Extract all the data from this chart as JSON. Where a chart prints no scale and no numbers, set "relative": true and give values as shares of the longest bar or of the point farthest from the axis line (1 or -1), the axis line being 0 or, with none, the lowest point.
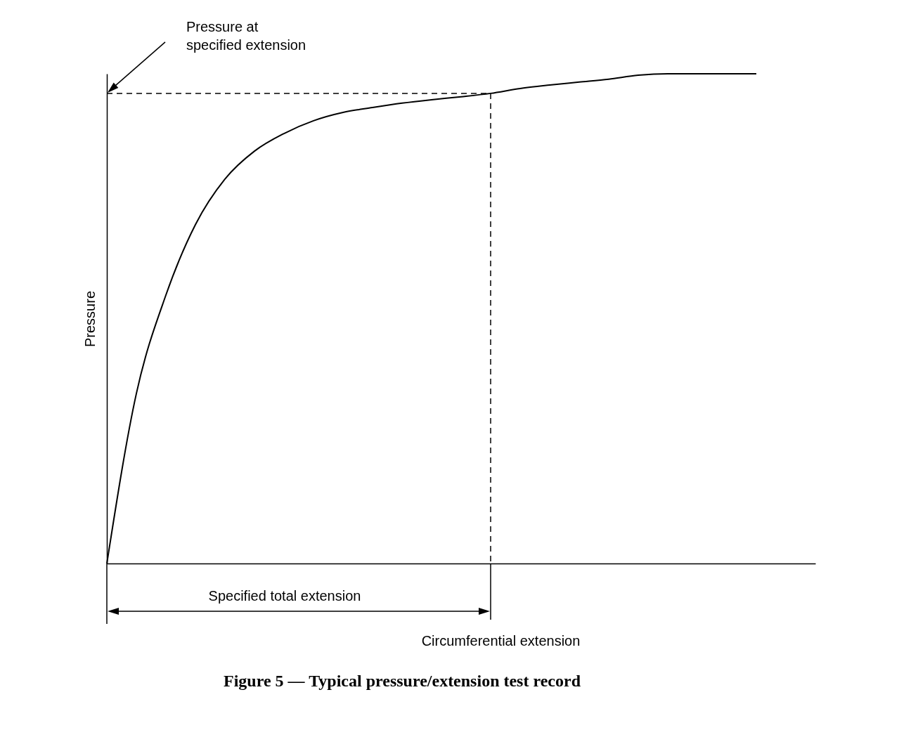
{
  "chart_data": {
    "type": "line",
    "title": "Figure 5 — Typical pressure/extension test record",
    "xlabel": "Circumferential extension",
    "ylabel": "Pressure",
    "relative": true,
    "categories": [
      null,
      null,
      null,
      null,
      null,
      null,
      null,
      null,
      null,
      null,
      null,
      null,
      null,
      null,
      null,
      null,
      null,
      null,
      null,
      null,
      null,
      null,
      null,
      null,
      null
    ],
    "values": [
      0,
      0.347,
      0.548,
      0.692,
      0.785,
      0.842,
      0.878,
      0.904,
      0.921,
      0.931,
      0.94,
      0.947,
      0.953,
      0.96,
      0.97,
      0.977,
      0.983,
      0.989,
      0.997,
      1,
      1,
      1,
      1,
      null,
      null
    ],
    "color": "#000000",
    "ref_lines": [
      {
        "axis": "y",
        "value": 0.96,
        "line_style": "dashed",
        "color": "#000000"
      }
    ],
    "annotations": [
      "Pressure at specified extension",
      "Specified total extension"
    ]
  }
}
